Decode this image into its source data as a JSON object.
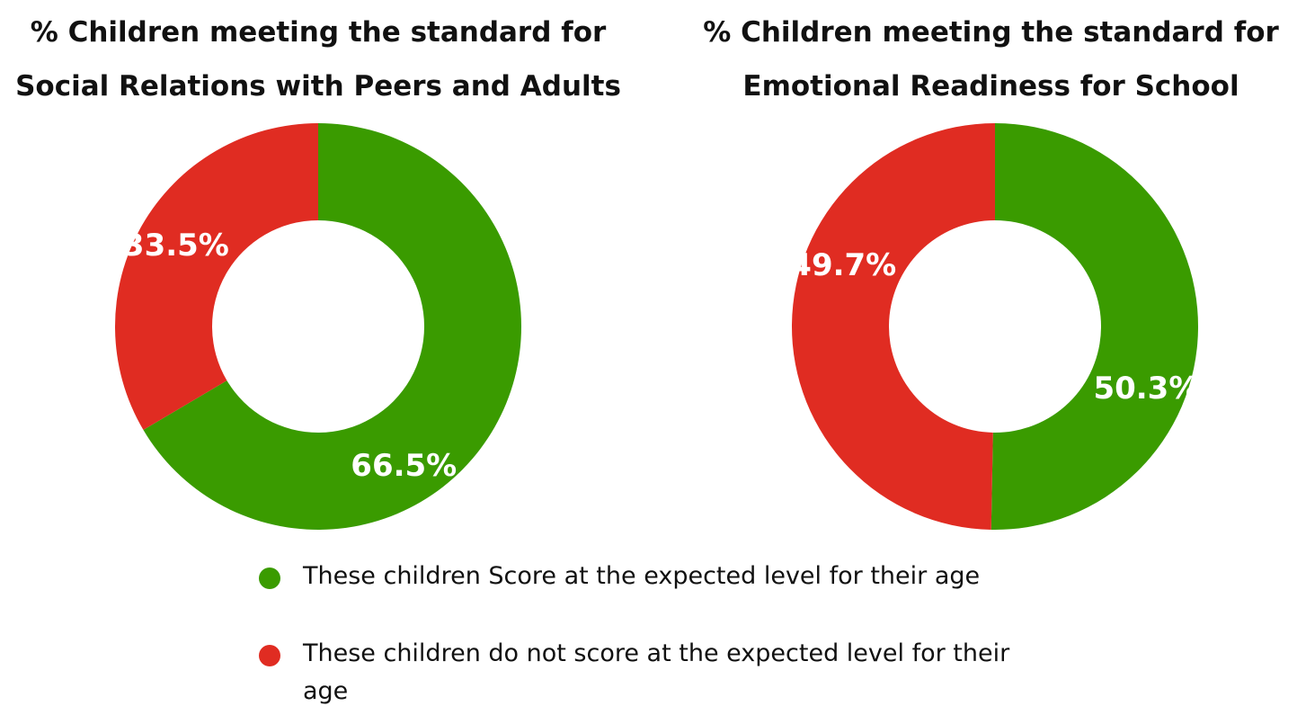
{
  "chart_data": [
    {
      "type": "pie",
      "title": [
        "% Children meeting the standard for",
        "Social Relations with Peers and Adults"
      ],
      "categories": [
        "These children Score at the expected level for their age",
        "These children do not score at the expected level for their age"
      ],
      "values": [
        66.5,
        33.5
      ],
      "labels": [
        "66.5%",
        "33.5%"
      ],
      "colors": [
        "#3a9b00",
        "#e02c22"
      ]
    },
    {
      "type": "pie",
      "title": [
        "% Children meeting the standard for",
        "Emotional Readiness for School"
      ],
      "categories": [
        "These children Score at the expected level for their age",
        "These children do not score at the expected level for their age"
      ],
      "values": [
        50.3,
        49.7
      ],
      "labels": [
        "50.3%",
        "49.7%"
      ],
      "colors": [
        "#3a9b00",
        "#e02c22"
      ]
    }
  ],
  "legend": {
    "placement": "bottom",
    "items": [
      {
        "label": "These children Score at the expected level for their age",
        "color": "#3a9b00"
      },
      {
        "label": "These children do not score at the expected level for their age",
        "color": "#e02c22"
      }
    ]
  }
}
